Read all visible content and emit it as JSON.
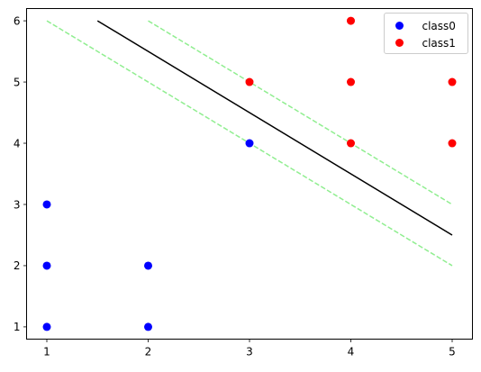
{
  "chart_data": {
    "type": "scatter",
    "xlim": [
      0.8,
      5.2
    ],
    "ylim": [
      0.8,
      6.2
    ],
    "xticks": [
      1,
      2,
      3,
      4,
      5
    ],
    "yticks": [
      1,
      2,
      3,
      4,
      5,
      6
    ],
    "xtick_labels": [
      "1",
      "2",
      "3",
      "4",
      "5"
    ],
    "ytick_labels": [
      "1",
      "2",
      "3",
      "4",
      "5",
      "6"
    ],
    "grid": false,
    "legend_position": "top-right",
    "series": [
      {
        "name": "class0",
        "color": "#0000ff",
        "points": [
          [
            1,
            1
          ],
          [
            1,
            2
          ],
          [
            1,
            3
          ],
          [
            2,
            1
          ],
          [
            2,
            2
          ],
          [
            3,
            4
          ]
        ]
      },
      {
        "name": "class1",
        "color": "#ff0000",
        "points": [
          [
            3,
            5
          ],
          [
            4,
            4
          ],
          [
            4,
            5
          ],
          [
            4,
            6
          ],
          [
            5,
            4
          ],
          [
            5,
            5
          ]
        ]
      }
    ],
    "lines": [
      {
        "role": "decision-boundary",
        "color": "#000000",
        "dashed": false,
        "points": [
          [
            1.5,
            6
          ],
          [
            5,
            2.5
          ]
        ]
      },
      {
        "role": "margin-upper",
        "color": "#90ee90",
        "dashed": true,
        "points": [
          [
            2,
            6
          ],
          [
            5,
            3
          ]
        ]
      },
      {
        "role": "margin-lower",
        "color": "#90ee90",
        "dashed": true,
        "points": [
          [
            1,
            6
          ],
          [
            5,
            2
          ]
        ]
      }
    ]
  }
}
